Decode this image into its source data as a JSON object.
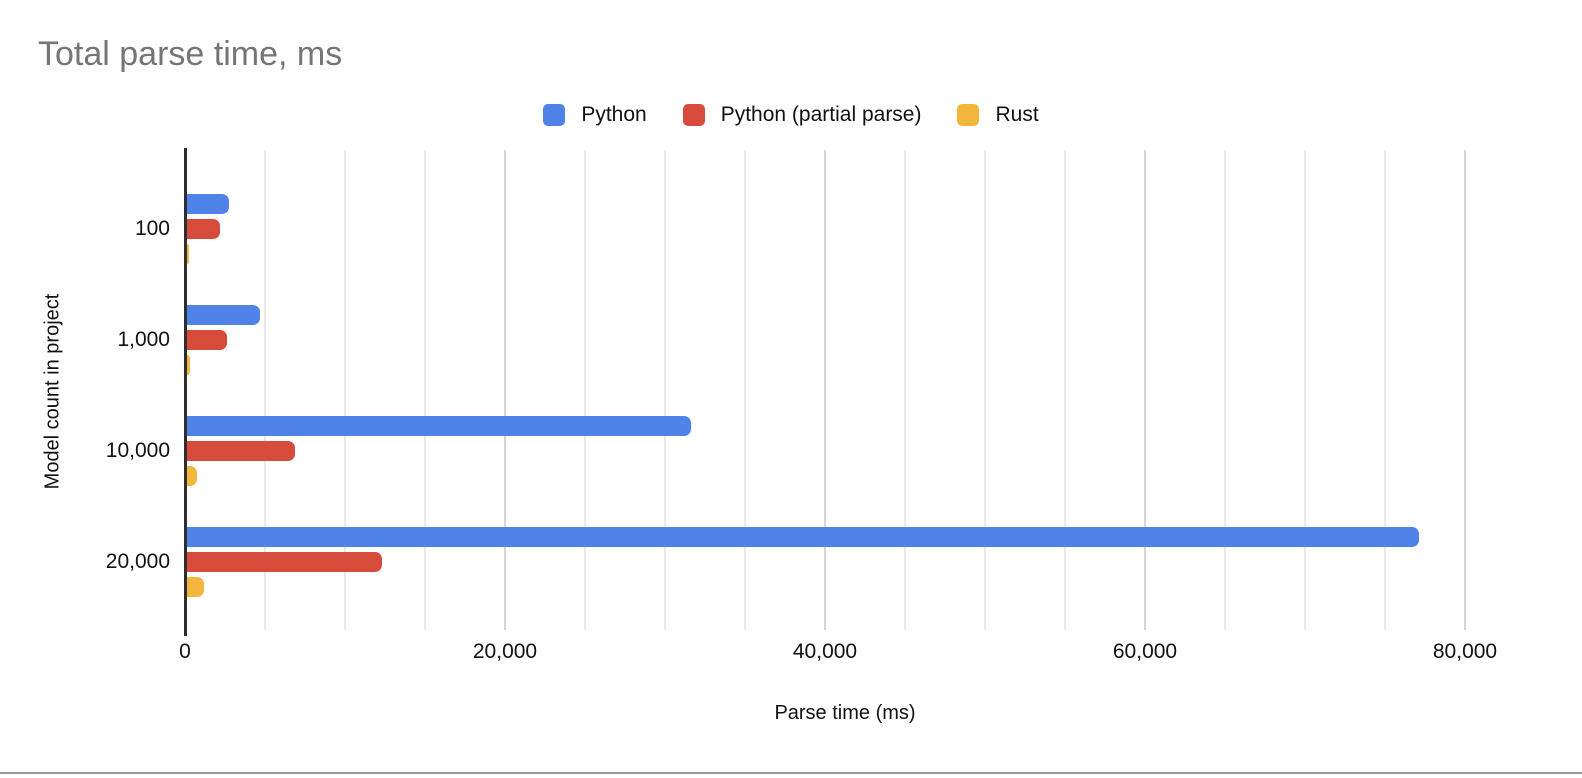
{
  "page": {
    "background": "#ffffff",
    "title_color": "#757575",
    "divider_color": "#9a9a9a"
  },
  "chart_data": {
    "type": "bar",
    "orientation": "horizontal",
    "title": "Total parse time, ms",
    "xlabel": "Parse time (ms)",
    "ylabel": "Model count in project",
    "categories": [
      "100",
      "1,000",
      "10,000",
      "20,000"
    ],
    "series": [
      {
        "name": "Python",
        "color": "#5083E8",
        "values": [
          2600,
          4550,
          31500,
          77000
        ]
      },
      {
        "name": "Python (partial parse)",
        "color": "#D74B3B",
        "values": [
          2050,
          2500,
          6750,
          12200
        ]
      },
      {
        "name": "Rust",
        "color": "#F3B73E",
        "values": [
          150,
          180,
          600,
          1050
        ]
      }
    ],
    "xlim": [
      0,
      82500
    ],
    "x_tick_step": 20000,
    "x_tick_labels": [
      "0",
      "20,000",
      "40,000",
      "60,000",
      "80,000"
    ],
    "gridline_step": 5000,
    "gridline_max": 80000,
    "grid": true,
    "legend_position": "top",
    "axis_color": "#2e2e2e",
    "gridline_minor_color": "#e9e9e9",
    "gridline_major_color": "#d6d6d6",
    "text_color": "#111111"
  }
}
